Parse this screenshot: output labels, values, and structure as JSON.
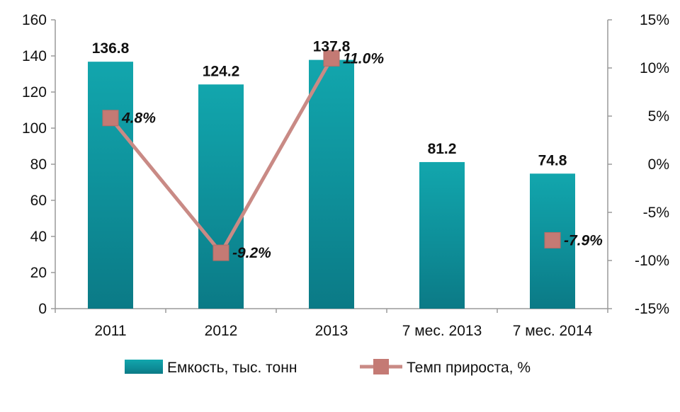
{
  "chart_data": {
    "type": "bar",
    "categories": [
      "2011",
      "2012",
      "2013",
      "7 мес. 2013",
      "7 мес. 2014"
    ],
    "series": [
      {
        "name": "Емкость, тыс. тонн",
        "type": "bar",
        "axis": "left",
        "values": [
          136.8,
          124.2,
          137.8,
          81.2,
          74.8
        ],
        "labels": [
          "136.8",
          "124.2",
          "137.8",
          "81.2",
          "74.8"
        ],
        "color": "#1a9aa3"
      },
      {
        "name": "Темп прироста, %",
        "type": "line",
        "axis": "right",
        "values": [
          4.8,
          -9.2,
          11.0,
          null,
          -7.9
        ],
        "labels": [
          "4.8%",
          "-9.2%",
          "11.0%",
          "",
          "-7.9%"
        ],
        "color": "#c98a85",
        "marker_color": "#c47a74"
      }
    ],
    "y_left": {
      "ylim": [
        0,
        160
      ],
      "ticks": [
        "0",
        "20",
        "40",
        "60",
        "80",
        "100",
        "120",
        "140",
        "160"
      ]
    },
    "y_right": {
      "ylim": [
        -15,
        15
      ],
      "ticks": [
        "-15%",
        "-10%",
        "-5%",
        "0%",
        "5%",
        "10%",
        "15%"
      ]
    },
    "grid": false,
    "legend_position": "bottom"
  }
}
